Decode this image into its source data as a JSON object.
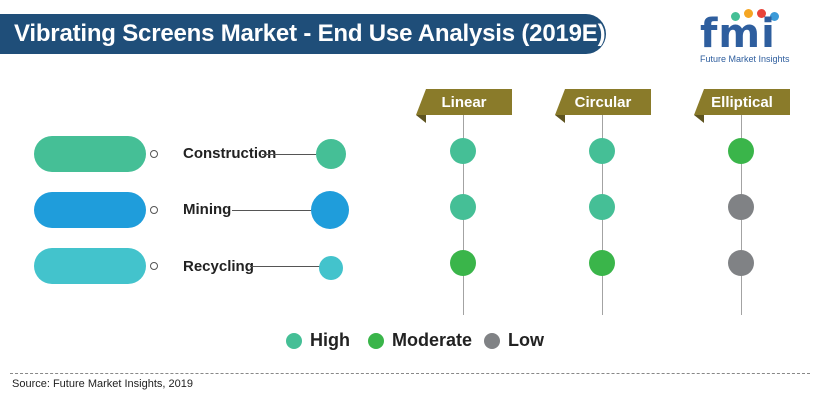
{
  "title": "Vibrating Screens Market - End Use Analysis (2019E)",
  "logo": {
    "letters": "fmi",
    "subtitle": "Future Market Insights"
  },
  "colors": {
    "banner": "#1f4e79",
    "header": "#8a7b2a",
    "High": "#45bf96",
    "Moderate": "#3ab54a",
    "Low": "#808285",
    "construction": "#45bf96",
    "mining": "#1f9ddb",
    "recycling": "#43c3cc"
  },
  "chart_data": {
    "type": "table",
    "title": "Vibrating Screens Market - End Use Analysis (2019E)",
    "columns": [
      "Linear",
      "Circular",
      "Elliptical"
    ],
    "rows": [
      {
        "name": "Construction",
        "values": [
          "High",
          "High",
          "Moderate"
        ]
      },
      {
        "name": "Mining",
        "values": [
          "High",
          "High",
          "Low"
        ]
      },
      {
        "name": "Recycling",
        "values": [
          "Moderate",
          "Moderate",
          "Low"
        ]
      }
    ],
    "legend": [
      "High",
      "Moderate",
      "Low"
    ]
  },
  "source": "Source: Future Market Insights, 2019"
}
